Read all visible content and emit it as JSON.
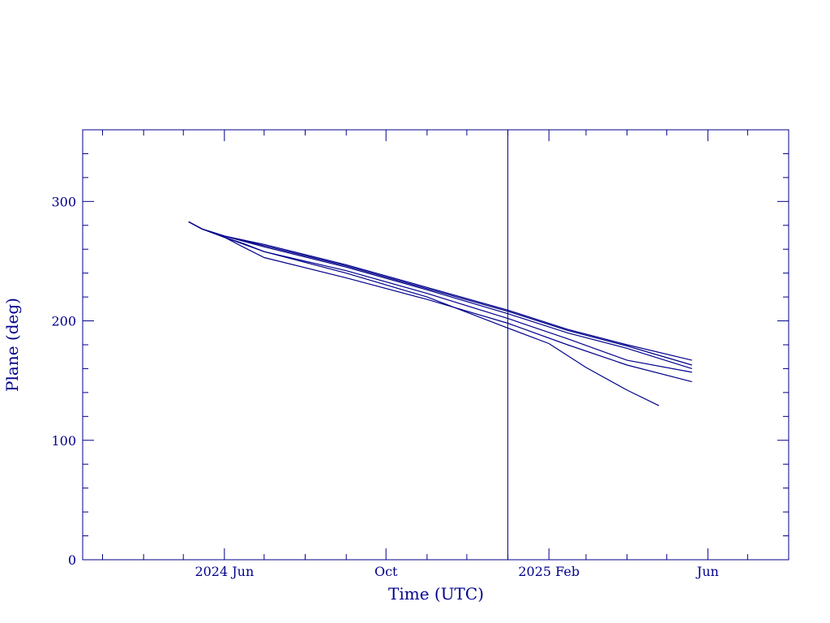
{
  "chart_data": {
    "type": "line",
    "title": "",
    "xlabel": "Time (UTC)",
    "ylabel": "Plane (deg)",
    "x_axis": {
      "type": "date",
      "range": [
        "2024-02-15",
        "2025-08-01"
      ],
      "major_ticks": [
        {
          "date": "2024-06-01",
          "label": "2024 Jun"
        },
        {
          "date": "2024-10-01",
          "label": "Oct"
        },
        {
          "date": "2025-02-01",
          "label": "2025 Feb"
        },
        {
          "date": "2025-06-01",
          "label": "Jun"
        }
      ],
      "minor_tick_months": [
        "2024-03-01",
        "2024-04-01",
        "2024-05-01",
        "2024-07-01",
        "2024-08-01",
        "2024-09-01",
        "2024-11-01",
        "2024-12-01",
        "2025-01-01",
        "2025-03-01",
        "2025-04-01",
        "2025-05-01",
        "2025-07-01"
      ]
    },
    "y_axis": {
      "range": [
        0,
        360
      ],
      "major_ticks": [
        0,
        100,
        200,
        300
      ],
      "minor_step": 20
    },
    "marker_line": {
      "date": "2025-01-01"
    },
    "grid": false,
    "legend": "none",
    "color": "#00008b",
    "series": [
      {
        "points": [
          [
            "2024-05-05",
            283
          ],
          [
            "2024-05-15",
            277
          ],
          [
            "2024-06-01",
            271
          ],
          [
            "2024-07-01",
            264
          ],
          [
            "2024-09-01",
            247
          ],
          [
            "2024-11-01",
            228
          ],
          [
            "2025-01-01",
            209
          ],
          [
            "2025-02-15",
            193
          ],
          [
            "2025-04-01",
            180
          ],
          [
            "2025-05-20",
            167
          ]
        ]
      },
      {
        "points": [
          [
            "2024-05-05",
            283
          ],
          [
            "2024-05-15",
            277
          ],
          [
            "2024-06-01",
            271
          ],
          [
            "2024-07-01",
            263
          ],
          [
            "2024-09-01",
            246
          ],
          [
            "2024-11-01",
            227
          ],
          [
            "2025-01-01",
            208
          ],
          [
            "2025-02-15",
            192
          ],
          [
            "2025-04-01",
            179
          ],
          [
            "2025-05-20",
            163
          ]
        ]
      },
      {
        "points": [
          [
            "2024-05-05",
            283
          ],
          [
            "2024-05-15",
            277
          ],
          [
            "2024-06-01",
            271
          ],
          [
            "2024-07-01",
            262
          ],
          [
            "2024-09-01",
            245
          ],
          [
            "2024-11-01",
            226
          ],
          [
            "2025-01-01",
            206
          ],
          [
            "2025-02-15",
            190
          ],
          [
            "2025-04-01",
            177
          ],
          [
            "2025-05-20",
            160
          ]
        ]
      },
      {
        "points": [
          [
            "2024-05-05",
            283
          ],
          [
            "2024-05-15",
            277
          ],
          [
            "2024-06-01",
            270
          ],
          [
            "2024-06-15",
            265
          ],
          [
            "2024-07-01",
            258
          ],
          [
            "2024-09-01",
            242
          ],
          [
            "2024-11-01",
            223
          ],
          [
            "2025-01-01",
            202
          ],
          [
            "2025-02-15",
            185
          ],
          [
            "2025-04-01",
            167
          ],
          [
            "2025-05-20",
            157
          ]
        ]
      },
      {
        "points": [
          [
            "2024-05-05",
            283
          ],
          [
            "2024-05-15",
            277
          ],
          [
            "2024-06-01",
            270
          ],
          [
            "2024-06-15",
            262
          ],
          [
            "2024-07-01",
            253
          ],
          [
            "2024-09-01",
            236
          ],
          [
            "2024-11-01",
            218
          ],
          [
            "2025-01-01",
            198
          ],
          [
            "2025-02-15",
            180
          ],
          [
            "2025-04-01",
            163
          ],
          [
            "2025-05-20",
            149
          ]
        ]
      },
      {
        "points": [
          [
            "2024-05-05",
            283
          ],
          [
            "2024-05-15",
            277
          ],
          [
            "2024-06-01",
            270
          ],
          [
            "2024-07-01",
            258
          ],
          [
            "2024-09-01",
            240
          ],
          [
            "2024-11-01",
            220
          ],
          [
            "2025-01-01",
            194
          ],
          [
            "2025-02-01",
            181
          ],
          [
            "2025-03-01",
            161
          ],
          [
            "2025-04-01",
            142
          ],
          [
            "2025-04-25",
            129
          ]
        ]
      }
    ]
  }
}
